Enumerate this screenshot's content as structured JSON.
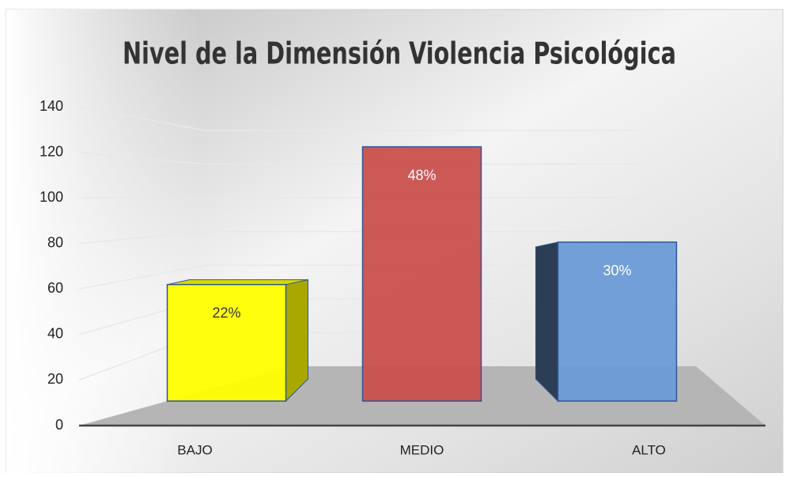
{
  "chart_data": {
    "type": "bar3d",
    "title": "Nivel de la Dimensión Violencia Psicológica",
    "categories": [
      "BAJO",
      "MEDIO",
      "ALTO"
    ],
    "values": [
      55,
      120,
      75
    ],
    "percent_labels": [
      "22%",
      "48%",
      "30%"
    ],
    "colors": [
      "#ffff00",
      "#c9504d",
      "#6b9bd6"
    ],
    "ylim": [
      0,
      140
    ],
    "yticks": [
      0,
      20,
      40,
      60,
      80,
      100,
      120,
      140
    ],
    "grid": true
  }
}
